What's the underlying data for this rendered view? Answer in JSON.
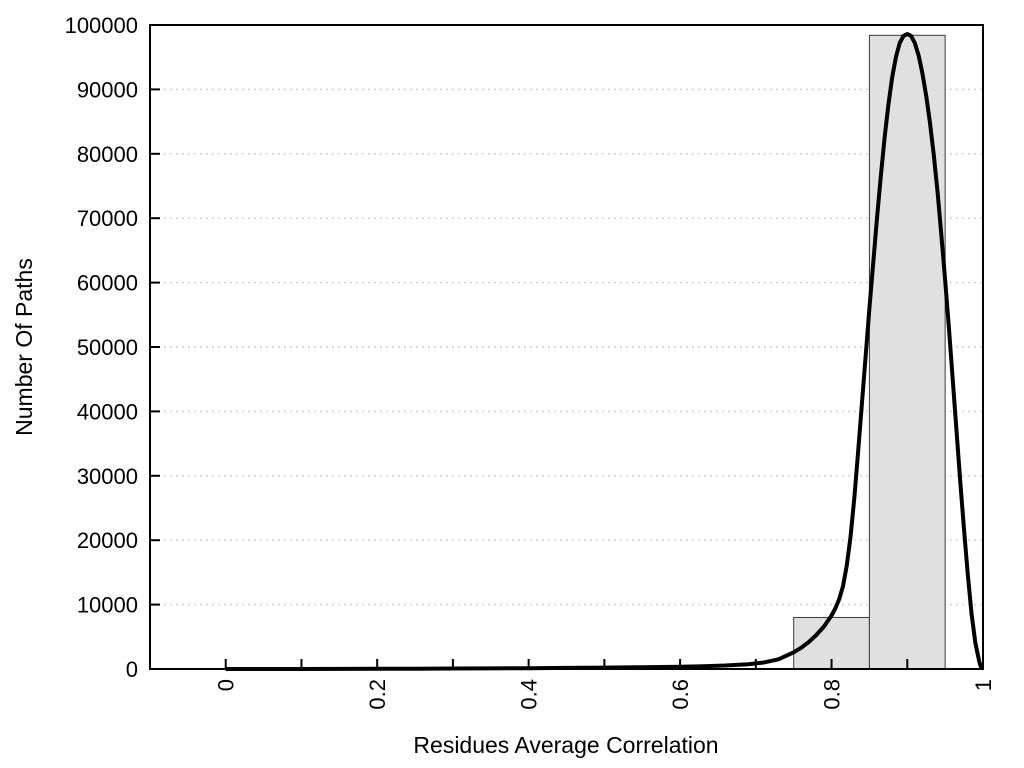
{
  "figure": {
    "background": "#ffffff"
  },
  "chart_data": {
    "type": "histogram",
    "title": "",
    "xlabel": "Residues Average Correlation",
    "ylabel": "Number Of Paths",
    "xlim": [
      -0.1,
      1.0
    ],
    "ylim": [
      0,
      100000
    ],
    "grid": {
      "horizontal": "dotted",
      "vertical": "off"
    },
    "legend": "none",
    "x_tick_values": [
      0,
      0.1,
      0.2,
      0.3,
      0.4,
      0.5,
      0.6,
      0.7,
      0.8,
      0.9,
      1.0
    ],
    "x_tick_labels": [
      {
        "value": 0.0,
        "label": "0"
      },
      {
        "value": 0.2,
        "label": "0.2"
      },
      {
        "value": 0.4,
        "label": "0.4"
      },
      {
        "value": 0.6,
        "label": "0.6"
      },
      {
        "value": 0.8,
        "label": "0.8"
      },
      {
        "value": 1.0,
        "label": "1"
      }
    ],
    "y_tick_labels": [
      {
        "value": 0,
        "label": "0"
      },
      {
        "value": 10000,
        "label": "10000"
      },
      {
        "value": 20000,
        "label": "20000"
      },
      {
        "value": 30000,
        "label": "30000"
      },
      {
        "value": 40000,
        "label": "40000"
      },
      {
        "value": 50000,
        "label": "50000"
      },
      {
        "value": 60000,
        "label": "60000"
      },
      {
        "value": 70000,
        "label": "70000"
      },
      {
        "value": 80000,
        "label": "80000"
      },
      {
        "value": 90000,
        "label": "90000"
      },
      {
        "value": 100000,
        "label": "100000"
      }
    ],
    "y_gridlines": [
      10000,
      20000,
      30000,
      40000,
      50000,
      60000,
      70000,
      80000,
      90000
    ],
    "bars": [
      {
        "x_start": 0.75,
        "x_end": 0.85,
        "count": 8000
      },
      {
        "x_start": 0.85,
        "x_end": 0.95,
        "count": 98400
      }
    ],
    "density_curve": {
      "points": [
        [
          0.0,
          0
        ],
        [
          0.1,
          0
        ],
        [
          0.2,
          30
        ],
        [
          0.25,
          50
        ],
        [
          0.3,
          70
        ],
        [
          0.35,
          100
        ],
        [
          0.4,
          130
        ],
        [
          0.45,
          170
        ],
        [
          0.5,
          220
        ],
        [
          0.55,
          280
        ],
        [
          0.6,
          360
        ],
        [
          0.63,
          430
        ],
        [
          0.66,
          550
        ],
        [
          0.69,
          750
        ],
        [
          0.71,
          1000
        ],
        [
          0.73,
          1500
        ],
        [
          0.75,
          2600
        ],
        [
          0.76,
          3300
        ],
        [
          0.77,
          4200
        ],
        [
          0.78,
          5300
        ],
        [
          0.79,
          6600
        ],
        [
          0.8,
          8300
        ],
        [
          0.805,
          9400
        ],
        [
          0.81,
          10800
        ],
        [
          0.815,
          12800
        ],
        [
          0.82,
          16000
        ],
        [
          0.825,
          20500
        ],
        [
          0.83,
          26500
        ],
        [
          0.835,
          33500
        ],
        [
          0.84,
          41000
        ],
        [
          0.845,
          48500
        ],
        [
          0.85,
          56000
        ],
        [
          0.855,
          63000
        ],
        [
          0.86,
          70000
        ],
        [
          0.865,
          76500
        ],
        [
          0.87,
          82500
        ],
        [
          0.875,
          87500
        ],
        [
          0.88,
          91800
        ],
        [
          0.885,
          95000
        ],
        [
          0.89,
          97200
        ],
        [
          0.895,
          98300
        ],
        [
          0.9,
          98600
        ],
        [
          0.905,
          98300
        ],
        [
          0.91,
          97200
        ],
        [
          0.915,
          95300
        ],
        [
          0.92,
          92500
        ],
        [
          0.925,
          89000
        ],
        [
          0.93,
          84800
        ],
        [
          0.935,
          79800
        ],
        [
          0.94,
          74000
        ],
        [
          0.945,
          67500
        ],
        [
          0.95,
          60500
        ],
        [
          0.955,
          53000
        ],
        [
          0.96,
          45000
        ],
        [
          0.965,
          37000
        ],
        [
          0.97,
          29000
        ],
        [
          0.975,
          21500
        ],
        [
          0.98,
          14500
        ],
        [
          0.985,
          8500
        ],
        [
          0.99,
          4000
        ],
        [
          0.995,
          1200
        ],
        [
          0.998,
          0
        ]
      ]
    },
    "colors": {
      "bar_fill": "#e0e0e0",
      "bar_border": "#3a3a3a",
      "curve": "#000000",
      "axis": "#000000",
      "grid": "#c9c9c9",
      "text": "#000000"
    }
  }
}
